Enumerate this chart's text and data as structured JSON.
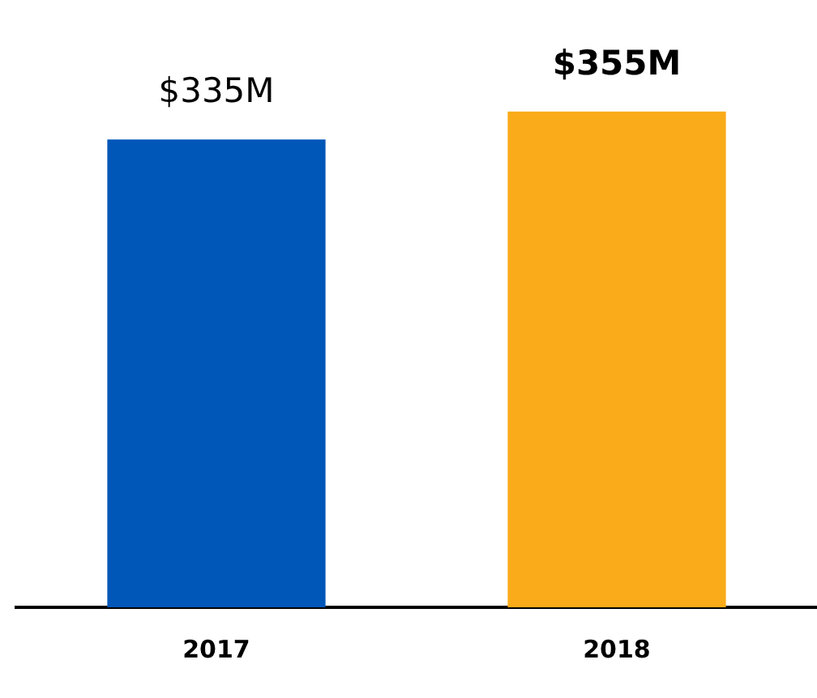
{
  "chart_data": {
    "type": "bar",
    "categories": [
      "2017",
      "2018"
    ],
    "values": [
      335,
      355
    ],
    "colors": [
      "#0057b8",
      "#f9ab19"
    ],
    "value_labels": [
      "$335M",
      "$355M"
    ],
    "grid": false,
    "legend": false,
    "tick_labels": "x"
  }
}
